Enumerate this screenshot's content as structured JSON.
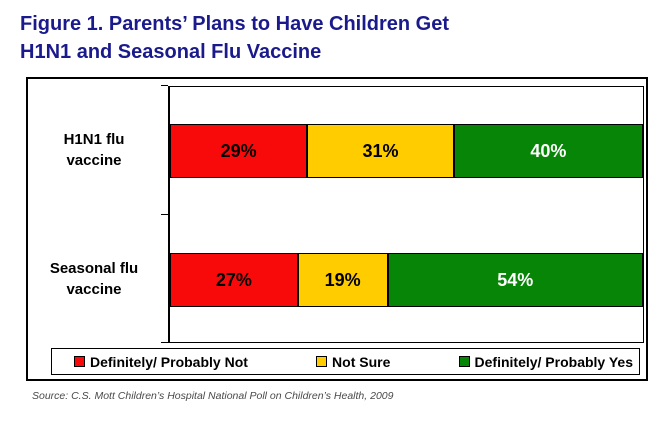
{
  "page": {
    "title_line1": "Figure 1. Parents’ Plans to Have Children Get",
    "title_line2": "H1N1 and Seasonal Flu Vaccine",
    "source": "Source: C.S. Mott Children’s Hospital National Poll on Children’s Health, 2009"
  },
  "colors": {
    "title": "#1A1A8C",
    "frame": "#000000",
    "definitely_not": "#F90A0A",
    "not_sure": "#FFCC00",
    "definitely_yes": "#078507"
  },
  "chart_data": {
    "type": "bar",
    "orientation": "horizontal",
    "stacked": true,
    "title": "Figure 1. Parents’ Plans to Have Children Get H1N1 and Seasonal Flu Vaccine",
    "xlim": [
      0,
      100
    ],
    "unit": "%",
    "grid": false,
    "legend_position": "bottom",
    "categories": [
      "H1N1 flu vaccine",
      "Seasonal flu vaccine"
    ],
    "category_label_lines": [
      [
        "H1N1 flu",
        "vaccine"
      ],
      [
        "Seasonal flu",
        "vaccine"
      ]
    ],
    "series": [
      {
        "name": "Definitely/ Probably Not",
        "color": "#F90A0A",
        "label_color": "#000000",
        "values": [
          29,
          27
        ]
      },
      {
        "name": "Not Sure",
        "color": "#FFCC00",
        "label_color": "#000000",
        "values": [
          31,
          19
        ]
      },
      {
        "name": "Definitely/ Probably Yes",
        "color": "#078507",
        "label_color": "#FFFFFF",
        "values": [
          40,
          54
        ]
      }
    ],
    "data_labels": [
      "29%",
      "31%",
      "40%",
      "27%",
      "19%",
      "54%"
    ],
    "source": "Source: C.S. Mott Children’s Hospital National Poll on Children’s Health, 2009"
  }
}
